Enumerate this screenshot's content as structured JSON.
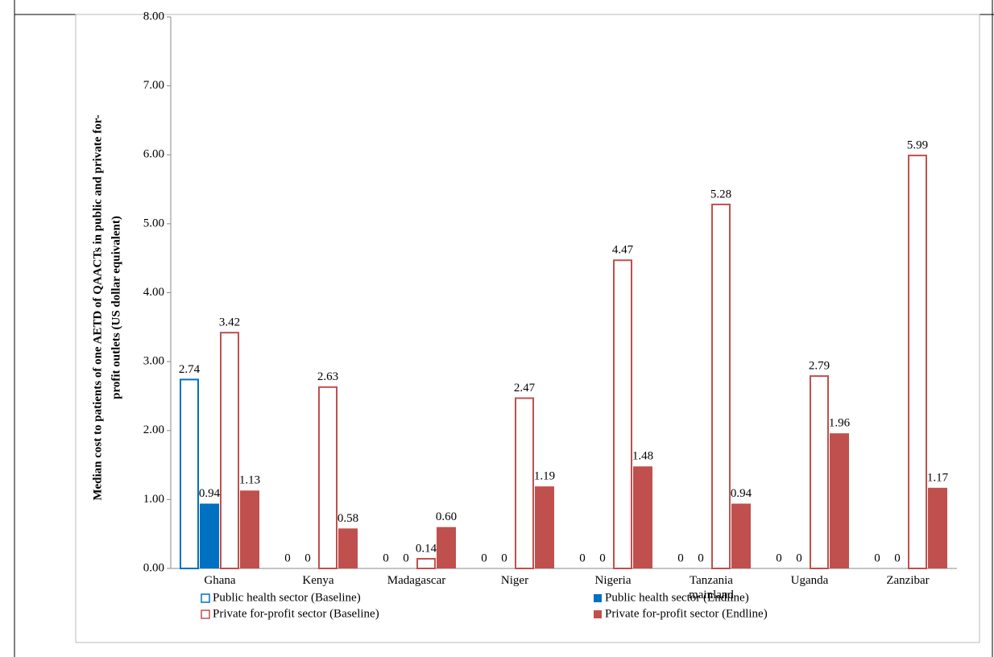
{
  "chart_data": {
    "type": "bar",
    "y_label": [
      "Median cost to patients of one AETD of QAACTs in public and private for-",
      "profit outlets (US dollar equivalent)"
    ],
    "categories": [
      "Ghana",
      "Kenya",
      "Madagascar",
      "Niger",
      "Nigeria",
      "Tanzania mainland",
      "Uganda",
      "Zanzibar"
    ],
    "series": [
      {
        "name": "Public health sector (Baseline)",
        "color": "#0070c0",
        "style": "outline",
        "values": [
          2.74,
          0,
          0,
          0,
          0,
          0,
          0,
          0
        ],
        "value_labels": [
          "2.74",
          "0",
          "0",
          "0",
          "0",
          "0",
          "0",
          "0"
        ]
      },
      {
        "name": "Public health sector (Endline)",
        "color": "#0070c0",
        "style": "filled",
        "values": [
          0.94,
          0,
          0,
          0,
          0,
          0,
          0,
          0
        ],
        "value_labels": [
          "0.94",
          "0",
          "0",
          "0",
          "0",
          "0",
          "0",
          "0"
        ]
      },
      {
        "name": "Private for-profit sector (Baseline)",
        "color": "#c0504d",
        "style": "outline",
        "values": [
          3.42,
          2.63,
          0.14,
          2.47,
          4.47,
          5.28,
          2.79,
          5.99
        ],
        "value_labels": [
          "3.42",
          "2.63",
          "0.14",
          "2.47",
          "4.47",
          "5.28",
          "2.79",
          "5.99"
        ]
      },
      {
        "name": "Private for-profit sector (Endline)",
        "color": "#c0504d",
        "style": "filled",
        "values": [
          1.13,
          0.58,
          0.6,
          1.19,
          1.48,
          0.94,
          1.96,
          1.17
        ],
        "value_labels": [
          "1.13",
          "0.58",
          "0.60",
          "1.19",
          "1.48",
          "0.94",
          "1.96",
          "1.17"
        ]
      }
    ],
    "ylim": [
      0,
      8
    ],
    "yticks": [
      {
        "value": 0,
        "label": "0.00"
      },
      {
        "value": 1,
        "label": "1.00"
      },
      {
        "value": 2,
        "label": "2.00"
      },
      {
        "value": 3,
        "label": "3.00"
      },
      {
        "value": 4,
        "label": "4.00"
      },
      {
        "value": 5,
        "label": "5.00"
      },
      {
        "value": 6,
        "label": "6.00"
      },
      {
        "value": 7,
        "label": "7.00"
      },
      {
        "value": 8,
        "label": "8.00"
      }
    ],
    "grid": false,
    "legend": "bottom"
  }
}
